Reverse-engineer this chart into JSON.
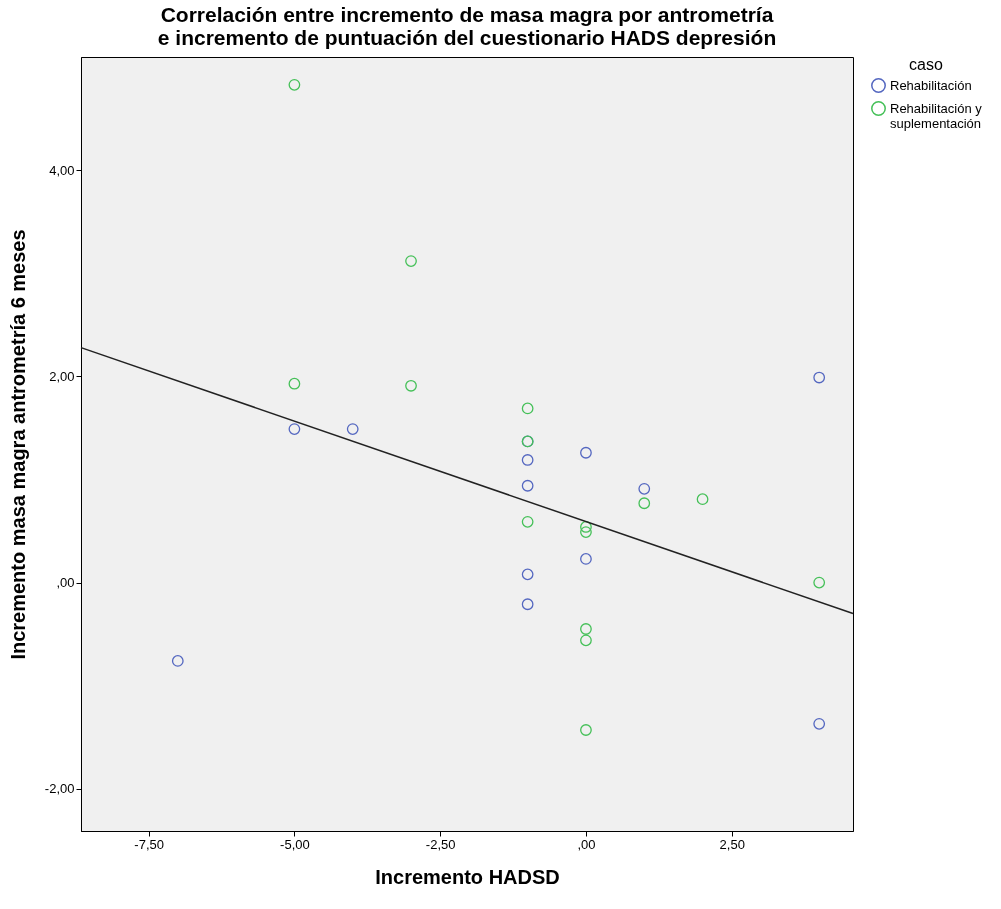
{
  "chart_data": {
    "type": "scatter",
    "title": "Correlación entre incremento de masa magra por antrometría e incremento de puntuación del cuestionario HADS depresión",
    "xlabel": "Incremento HADSD",
    "ylabel": "Incremento masa magra antrometría 6 meses",
    "legend_title": "caso",
    "xlim": [
      -8.66,
      4.58
    ],
    "ylim": [
      -2.41,
      5.1
    ],
    "xticks": [
      {
        "value": -7.5,
        "label": "-7,50"
      },
      {
        "value": -5,
        "label": "-5,00"
      },
      {
        "value": -2.5,
        "label": "-2,50"
      },
      {
        "value": 0,
        "label": ",00"
      },
      {
        "value": 2.5,
        "label": "2,50"
      }
    ],
    "yticks": [
      {
        "value": -2,
        "label": "-2,00"
      },
      {
        "value": 0,
        "label": ",00"
      },
      {
        "value": 2,
        "label": "2,00"
      },
      {
        "value": 4,
        "label": "4,00"
      }
    ],
    "grid": false,
    "legend": "top right",
    "marker": "circle",
    "series": [
      {
        "name": "Rehabilitación",
        "color": "#5467c0",
        "x": [
          -7,
          -5,
          -4,
          -1,
          -1,
          -1,
          -1,
          -1,
          0,
          0,
          1,
          4,
          4
        ],
        "values": [
          -0.76,
          1.49,
          1.49,
          1.37,
          1.19,
          0.94,
          0.08,
          -0.21,
          1.26,
          0.23,
          0.91,
          1.99,
          -1.37
        ]
      },
      {
        "name": "Rehabilitación y suplementación",
        "color": "#45c058",
        "x": [
          -5,
          -5,
          -3,
          -3,
          -1,
          -1,
          -1,
          0,
          0,
          0,
          0,
          0,
          1,
          2,
          4
        ],
        "values": [
          4.83,
          1.93,
          3.12,
          1.91,
          1.69,
          1.37,
          0.59,
          0.54,
          0.49,
          -0.45,
          -0.56,
          -1.43,
          0.77,
          0.81,
          0.0
        ]
      },
      {
        "type": "line",
        "color": "#222222",
        "marker": "none",
        "x": [
          -8.66,
          4.58
        ],
        "values": [
          2.28,
          -0.3
        ]
      }
    ]
  }
}
